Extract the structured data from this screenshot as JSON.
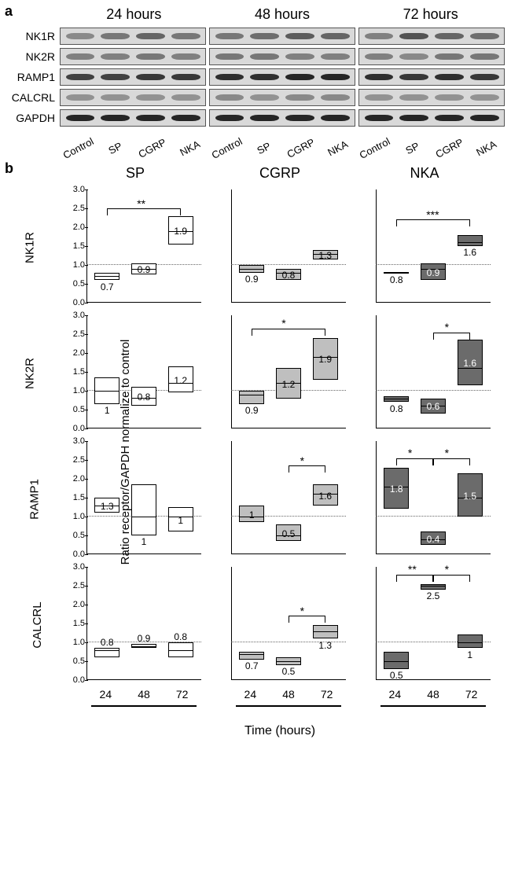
{
  "panelA": {
    "label": "a",
    "time_headers": [
      "24 hours",
      "48 hours",
      "72 hours"
    ],
    "targets": [
      "NK1R",
      "NK2R",
      "RAMP1",
      "CALCRL",
      "GAPDH"
    ],
    "lane_labels": [
      "Control",
      "SP",
      "CGRP",
      "NKA"
    ],
    "blot_bg": "#d9d9d9",
    "band_colors": {
      "NK1R": [
        [
          0.35,
          0.45,
          0.55,
          0.45
        ],
        [
          0.45,
          0.5,
          0.6,
          0.55
        ],
        [
          0.4,
          0.65,
          0.55,
          0.5
        ]
      ],
      "NK2R": [
        [
          0.4,
          0.4,
          0.45,
          0.4
        ],
        [
          0.45,
          0.45,
          0.4,
          0.4
        ],
        [
          0.4,
          0.35,
          0.45,
          0.45
        ]
      ],
      "RAMP1": [
        [
          0.75,
          0.75,
          0.8,
          0.8
        ],
        [
          0.85,
          0.85,
          0.9,
          0.9
        ],
        [
          0.85,
          0.8,
          0.85,
          0.8
        ]
      ],
      "CALCRL": [
        [
          0.3,
          0.3,
          0.3,
          0.3
        ],
        [
          0.35,
          0.3,
          0.35,
          0.35
        ],
        [
          0.3,
          0.3,
          0.3,
          0.3
        ]
      ],
      "GAPDH": [
        [
          0.9,
          0.9,
          0.9,
          0.9
        ],
        [
          0.9,
          0.9,
          0.9,
          0.9
        ],
        [
          0.9,
          0.9,
          0.9,
          0.9
        ]
      ]
    }
  },
  "panelB": {
    "label": "b",
    "columns": [
      "SP",
      "CGRP",
      "NKA"
    ],
    "rows": [
      "NK1R",
      "NK2R",
      "RAMP1",
      "CALCRL"
    ],
    "y_label": "Ratio receptor/GAPDH normalize to control",
    "x_label": "Time (hours)",
    "x_ticks": [
      "24",
      "48",
      "72"
    ],
    "y": {
      "min": 0.0,
      "max": 3.0,
      "ticks": [
        0.0,
        0.5,
        1.0,
        1.5,
        2.0,
        2.5,
        3.0
      ]
    },
    "ref": 1.0,
    "colors": {
      "SP": "#ffffff",
      "CGRP": "#bfbfbf",
      "NKA": "#6b6b6b"
    },
    "label_color_dark": "#000000",
    "label_color_light": "#ffffff",
    "data": {
      "NK1R": {
        "SP": [
          {
            "lo": 0.6,
            "med": 0.7,
            "hi": 0.8,
            "lab": "0.7",
            "lp": "below"
          },
          {
            "lo": 0.75,
            "med": 0.9,
            "hi": 1.05,
            "lab": "0.9",
            "lp": "inside"
          },
          {
            "lo": 1.55,
            "med": 1.9,
            "hi": 2.3,
            "lab": "1.9",
            "lp": "inside"
          }
        ],
        "CGRP": [
          {
            "lo": 0.8,
            "med": 0.9,
            "hi": 1.0,
            "lab": "0.9",
            "lp": "below"
          },
          {
            "lo": 0.6,
            "med": 0.8,
            "hi": 0.9,
            "lab": "0.8",
            "lp": "inside"
          },
          {
            "lo": 1.15,
            "med": 1.3,
            "hi": 1.4,
            "lab": "1.3",
            "lp": "inside"
          }
        ],
        "NKA": [
          {
            "lo": 0.78,
            "med": 0.8,
            "hi": 0.82,
            "lab": "0.8",
            "lp": "below"
          },
          {
            "lo": 0.6,
            "med": 0.9,
            "hi": 1.05,
            "lab": "0.9",
            "lp": "inside"
          },
          {
            "lo": 1.5,
            "med": 1.6,
            "hi": 1.8,
            "lab": "1.6",
            "lp": "below"
          }
        ]
      },
      "NK2R": {
        "SP": [
          {
            "lo": 0.65,
            "med": 1.0,
            "hi": 1.35,
            "lab": "1",
            "lp": "below"
          },
          {
            "lo": 0.6,
            "med": 0.8,
            "hi": 1.1,
            "lab": "0.8",
            "lp": "inside"
          },
          {
            "lo": 0.95,
            "med": 1.2,
            "hi": 1.65,
            "lab": "1.2",
            "lp": "inside"
          }
        ],
        "CGRP": [
          {
            "lo": 0.65,
            "med": 0.9,
            "hi": 1.0,
            "lab": "0.9",
            "lp": "below"
          },
          {
            "lo": 0.8,
            "med": 1.2,
            "hi": 1.6,
            "lab": "1.2",
            "lp": "inside"
          },
          {
            "lo": 1.3,
            "med": 1.9,
            "hi": 2.4,
            "lab": "1.9",
            "lp": "inside"
          }
        ],
        "NKA": [
          {
            "lo": 0.7,
            "med": 0.8,
            "hi": 0.85,
            "lab": "0.8",
            "lp": "below"
          },
          {
            "lo": 0.4,
            "med": 0.6,
            "hi": 0.8,
            "lab": "0.6",
            "lp": "inside"
          },
          {
            "lo": 1.15,
            "med": 1.6,
            "hi": 2.35,
            "lab": "1.6",
            "lp": "inside"
          }
        ]
      },
      "RAMP1": {
        "SP": [
          {
            "lo": 1.1,
            "med": 1.3,
            "hi": 1.5,
            "lab": "1.3",
            "lp": "inside"
          },
          {
            "lo": 0.5,
            "med": 1.0,
            "hi": 1.85,
            "lab": "1",
            "lp": "below"
          },
          {
            "lo": 0.6,
            "med": 1.0,
            "hi": 1.25,
            "lab": "1",
            "lp": "inside"
          }
        ],
        "CGRP": [
          {
            "lo": 0.85,
            "med": 1.0,
            "hi": 1.3,
            "lab": "1",
            "lp": "inside"
          },
          {
            "lo": 0.35,
            "med": 0.5,
            "hi": 0.8,
            "lab": "0.5",
            "lp": "inside"
          },
          {
            "lo": 1.3,
            "med": 1.6,
            "hi": 1.85,
            "lab": "1.6",
            "lp": "inside"
          }
        ],
        "NKA": [
          {
            "lo": 1.2,
            "med": 1.8,
            "hi": 2.3,
            "lab": "1.8",
            "lp": "inside"
          },
          {
            "lo": 0.25,
            "med": 0.4,
            "hi": 0.6,
            "lab": "0.4",
            "lp": "inside"
          },
          {
            "lo": 1.0,
            "med": 1.5,
            "hi": 2.15,
            "lab": "1.5",
            "lp": "inside"
          }
        ]
      },
      "CALCRL": {
        "SP": [
          {
            "lo": 0.6,
            "med": 0.8,
            "hi": 0.85,
            "lab": "0.8",
            "lp": "above"
          },
          {
            "lo": 0.85,
            "med": 0.9,
            "hi": 0.95,
            "lab": "0.9",
            "lp": "above"
          },
          {
            "lo": 0.6,
            "med": 0.8,
            "hi": 1.0,
            "lab": "0.8",
            "lp": "above"
          }
        ],
        "CGRP": [
          {
            "lo": 0.55,
            "med": 0.7,
            "hi": 0.75,
            "lab": "0.7",
            "lp": "below"
          },
          {
            "lo": 0.4,
            "med": 0.5,
            "hi": 0.6,
            "lab": "0.5",
            "lp": "below"
          },
          {
            "lo": 1.1,
            "med": 1.3,
            "hi": 1.45,
            "lab": "1.3",
            "lp": "below"
          }
        ],
        "NKA": [
          {
            "lo": 0.3,
            "med": 0.5,
            "hi": 0.75,
            "lab": "0.5",
            "lp": "below"
          },
          {
            "lo": 2.4,
            "med": 2.5,
            "hi": 2.55,
            "lab": "2.5",
            "lp": "below"
          },
          {
            "lo": 0.85,
            "med": 1.0,
            "hi": 1.2,
            "lab": "1",
            "lp": "below"
          }
        ]
      }
    },
    "sig": {
      "NK1R": {
        "SP": [
          {
            "from": 0,
            "to": 2,
            "y": 2.5,
            "txt": "**"
          }
        ],
        "NKA": [
          {
            "from": 0,
            "to": 2,
            "y": 2.2,
            "txt": "***"
          }
        ]
      },
      "NK2R": {
        "CGRP": [
          {
            "from": 0,
            "to": 2,
            "y": 2.65,
            "txt": "*"
          }
        ],
        "NKA": [
          {
            "from": 1,
            "to": 2,
            "y": 2.55,
            "txt": "*"
          }
        ]
      },
      "RAMP1": {
        "CGRP": [
          {
            "from": 1,
            "to": 2,
            "y": 2.35,
            "txt": "*"
          }
        ],
        "NKA": [
          {
            "from": 0,
            "to": 1,
            "y": 2.55,
            "txt": "*"
          },
          {
            "from": 1,
            "to": 2,
            "y": 2.55,
            "txt": "*"
          }
        ]
      },
      "CALCRL": {
        "CGRP": [
          {
            "from": 1,
            "to": 2,
            "y": 1.7,
            "txt": "*"
          }
        ],
        "NKA": [
          {
            "from": 0,
            "to": 1,
            "y": 2.8,
            "txt": "**"
          },
          {
            "from": 1,
            "to": 2,
            "y": 2.8,
            "txt": "*"
          }
        ]
      }
    }
  }
}
